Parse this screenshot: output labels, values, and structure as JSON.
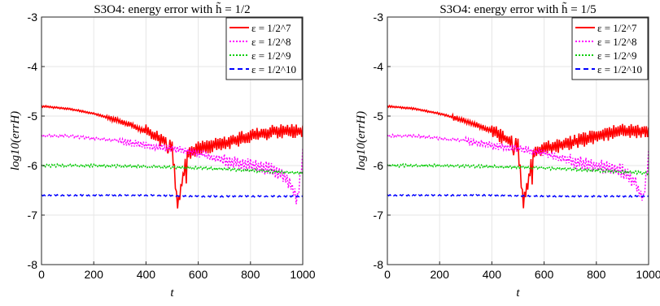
{
  "chart_data": [
    {
      "type": "line",
      "title": "S3O4: energy error with h̃ = 1/2",
      "xlabel": "t",
      "ylabel": "log10(errH)",
      "xlim": [
        0,
        1000
      ],
      "ylim": [
        -8,
        -3
      ],
      "xticks": [
        0,
        200,
        400,
        600,
        800,
        1000
      ],
      "yticks": [
        -8,
        -7,
        -6,
        -5,
        -4,
        -3
      ],
      "grid": true,
      "legend_position": "top-right",
      "series": [
        {
          "name": "ε = 1/2^7",
          "color": "#ff0000",
          "style": "solid",
          "x": [
            0,
            100,
            200,
            300,
            400,
            450,
            500,
            520,
            560,
            600,
            700,
            800,
            900,
            1000
          ],
          "y": [
            -4.8,
            -4.85,
            -4.95,
            -5.1,
            -5.3,
            -5.45,
            -5.6,
            -6.8,
            -5.75,
            -5.65,
            -5.55,
            -5.4,
            -5.3,
            -5.3
          ]
        },
        {
          "name": "ε = 1/2^8",
          "color": "#ff00ff",
          "style": "dotted",
          "x": [
            0,
            100,
            200,
            300,
            400,
            500,
            600,
            700,
            800,
            900,
            950,
            980,
            1000
          ],
          "y": [
            -5.4,
            -5.4,
            -5.45,
            -5.5,
            -5.6,
            -5.65,
            -5.75,
            -5.9,
            -6.0,
            -6.1,
            -6.35,
            -6.7,
            -5.8
          ]
        },
        {
          "name": "ε = 1/2^9",
          "color": "#00cc00",
          "style": "dotted",
          "x": [
            0,
            200,
            400,
            600,
            800,
            1000
          ],
          "y": [
            -6.0,
            -6.0,
            -6.02,
            -6.05,
            -6.1,
            -6.15
          ]
        },
        {
          "name": "ε = 1/2^10",
          "color": "#0000ff",
          "style": "dashed",
          "x": [
            0,
            200,
            400,
            600,
            800,
            1000
          ],
          "y": [
            -6.6,
            -6.6,
            -6.6,
            -6.62,
            -6.62,
            -6.62
          ]
        }
      ]
    },
    {
      "type": "line",
      "title": "S3O4: energy error with h̃ = 1/5",
      "xlabel": "t",
      "ylabel": "log10(errH)",
      "xlim": [
        0,
        1000
      ],
      "ylim": [
        -8,
        -3
      ],
      "xticks": [
        0,
        200,
        400,
        600,
        800,
        1000
      ],
      "yticks": [
        -8,
        -7,
        -6,
        -5,
        -4,
        -3
      ],
      "grid": true,
      "legend_position": "top-right",
      "series": [
        {
          "name": "ε = 1/2^7",
          "color": "#ff0000",
          "style": "solid",
          "x": [
            0,
            100,
            200,
            300,
            400,
            450,
            500,
            520,
            560,
            600,
            700,
            800,
            900,
            1000
          ],
          "y": [
            -4.8,
            -4.85,
            -4.95,
            -5.1,
            -5.3,
            -5.45,
            -5.6,
            -6.8,
            -5.75,
            -5.65,
            -5.55,
            -5.4,
            -5.3,
            -5.3
          ]
        },
        {
          "name": "ε = 1/2^8",
          "color": "#ff00ff",
          "style": "dotted",
          "x": [
            0,
            100,
            200,
            300,
            400,
            500,
            600,
            700,
            800,
            900,
            950,
            980,
            1000
          ],
          "y": [
            -5.4,
            -5.4,
            -5.45,
            -5.5,
            -5.6,
            -5.65,
            -5.75,
            -5.9,
            -6.0,
            -6.1,
            -6.35,
            -6.7,
            -5.8
          ]
        },
        {
          "name": "ε = 1/2^9",
          "color": "#00cc00",
          "style": "dotted",
          "x": [
            0,
            200,
            400,
            600,
            800,
            1000
          ],
          "y": [
            -6.0,
            -6.0,
            -6.02,
            -6.05,
            -6.1,
            -6.15
          ]
        },
        {
          "name": "ε = 1/2^10",
          "color": "#0000ff",
          "style": "dashed",
          "x": [
            0,
            200,
            400,
            600,
            800,
            1000
          ],
          "y": [
            -6.6,
            -6.6,
            -6.6,
            -6.62,
            -6.62,
            -6.62
          ]
        }
      ]
    }
  ]
}
